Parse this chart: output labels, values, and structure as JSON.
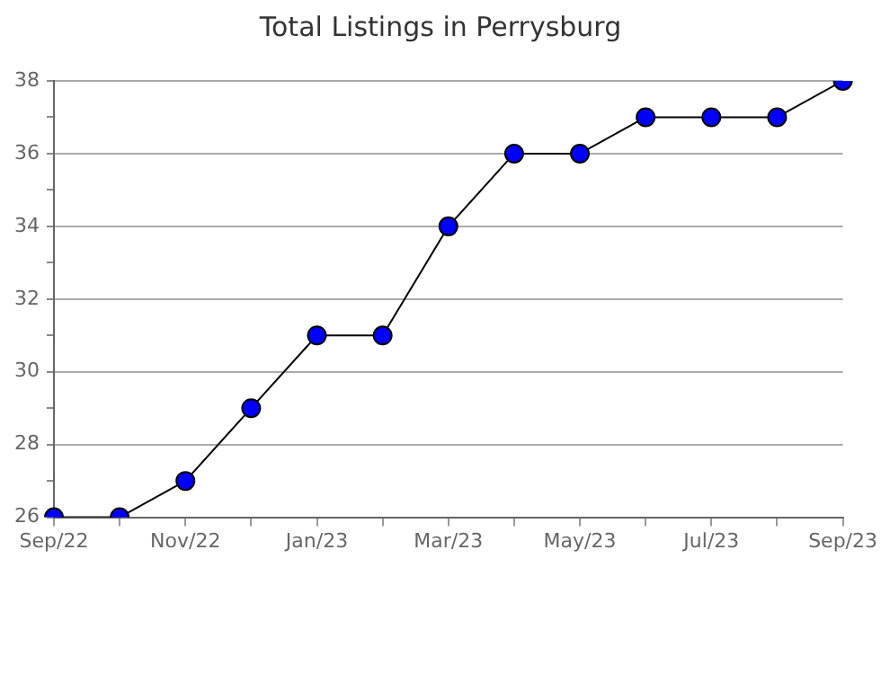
{
  "chart_data": {
    "type": "line",
    "title": "Total Listings in Perrysburg",
    "categories": [
      "Sep/22",
      null,
      "Nov/22",
      null,
      "Jan/23",
      null,
      "Mar/23",
      null,
      "May/23",
      null,
      "Jul/23",
      null,
      "Sep/23"
    ],
    "series": [
      {
        "color": "#0000ff",
        "values": [
          26,
          26,
          27,
          29,
          31,
          31,
          34,
          36,
          36,
          37,
          37,
          37,
          38
        ]
      }
    ],
    "ylim": [
      26,
      38
    ],
    "yticks": [
      26,
      {
        "value": 27,
        "label": null
      },
      28,
      {
        "value": 29,
        "label": null
      },
      30,
      {
        "value": 31,
        "label": null
      },
      32,
      {
        "value": 33,
        "label": null
      },
      34,
      {
        "value": 35,
        "label": null
      },
      36,
      {
        "value": 37,
        "label": null
      },
      38
    ],
    "grid": "y",
    "legend": false,
    "marker": "circle",
    "line_style": "solid"
  }
}
